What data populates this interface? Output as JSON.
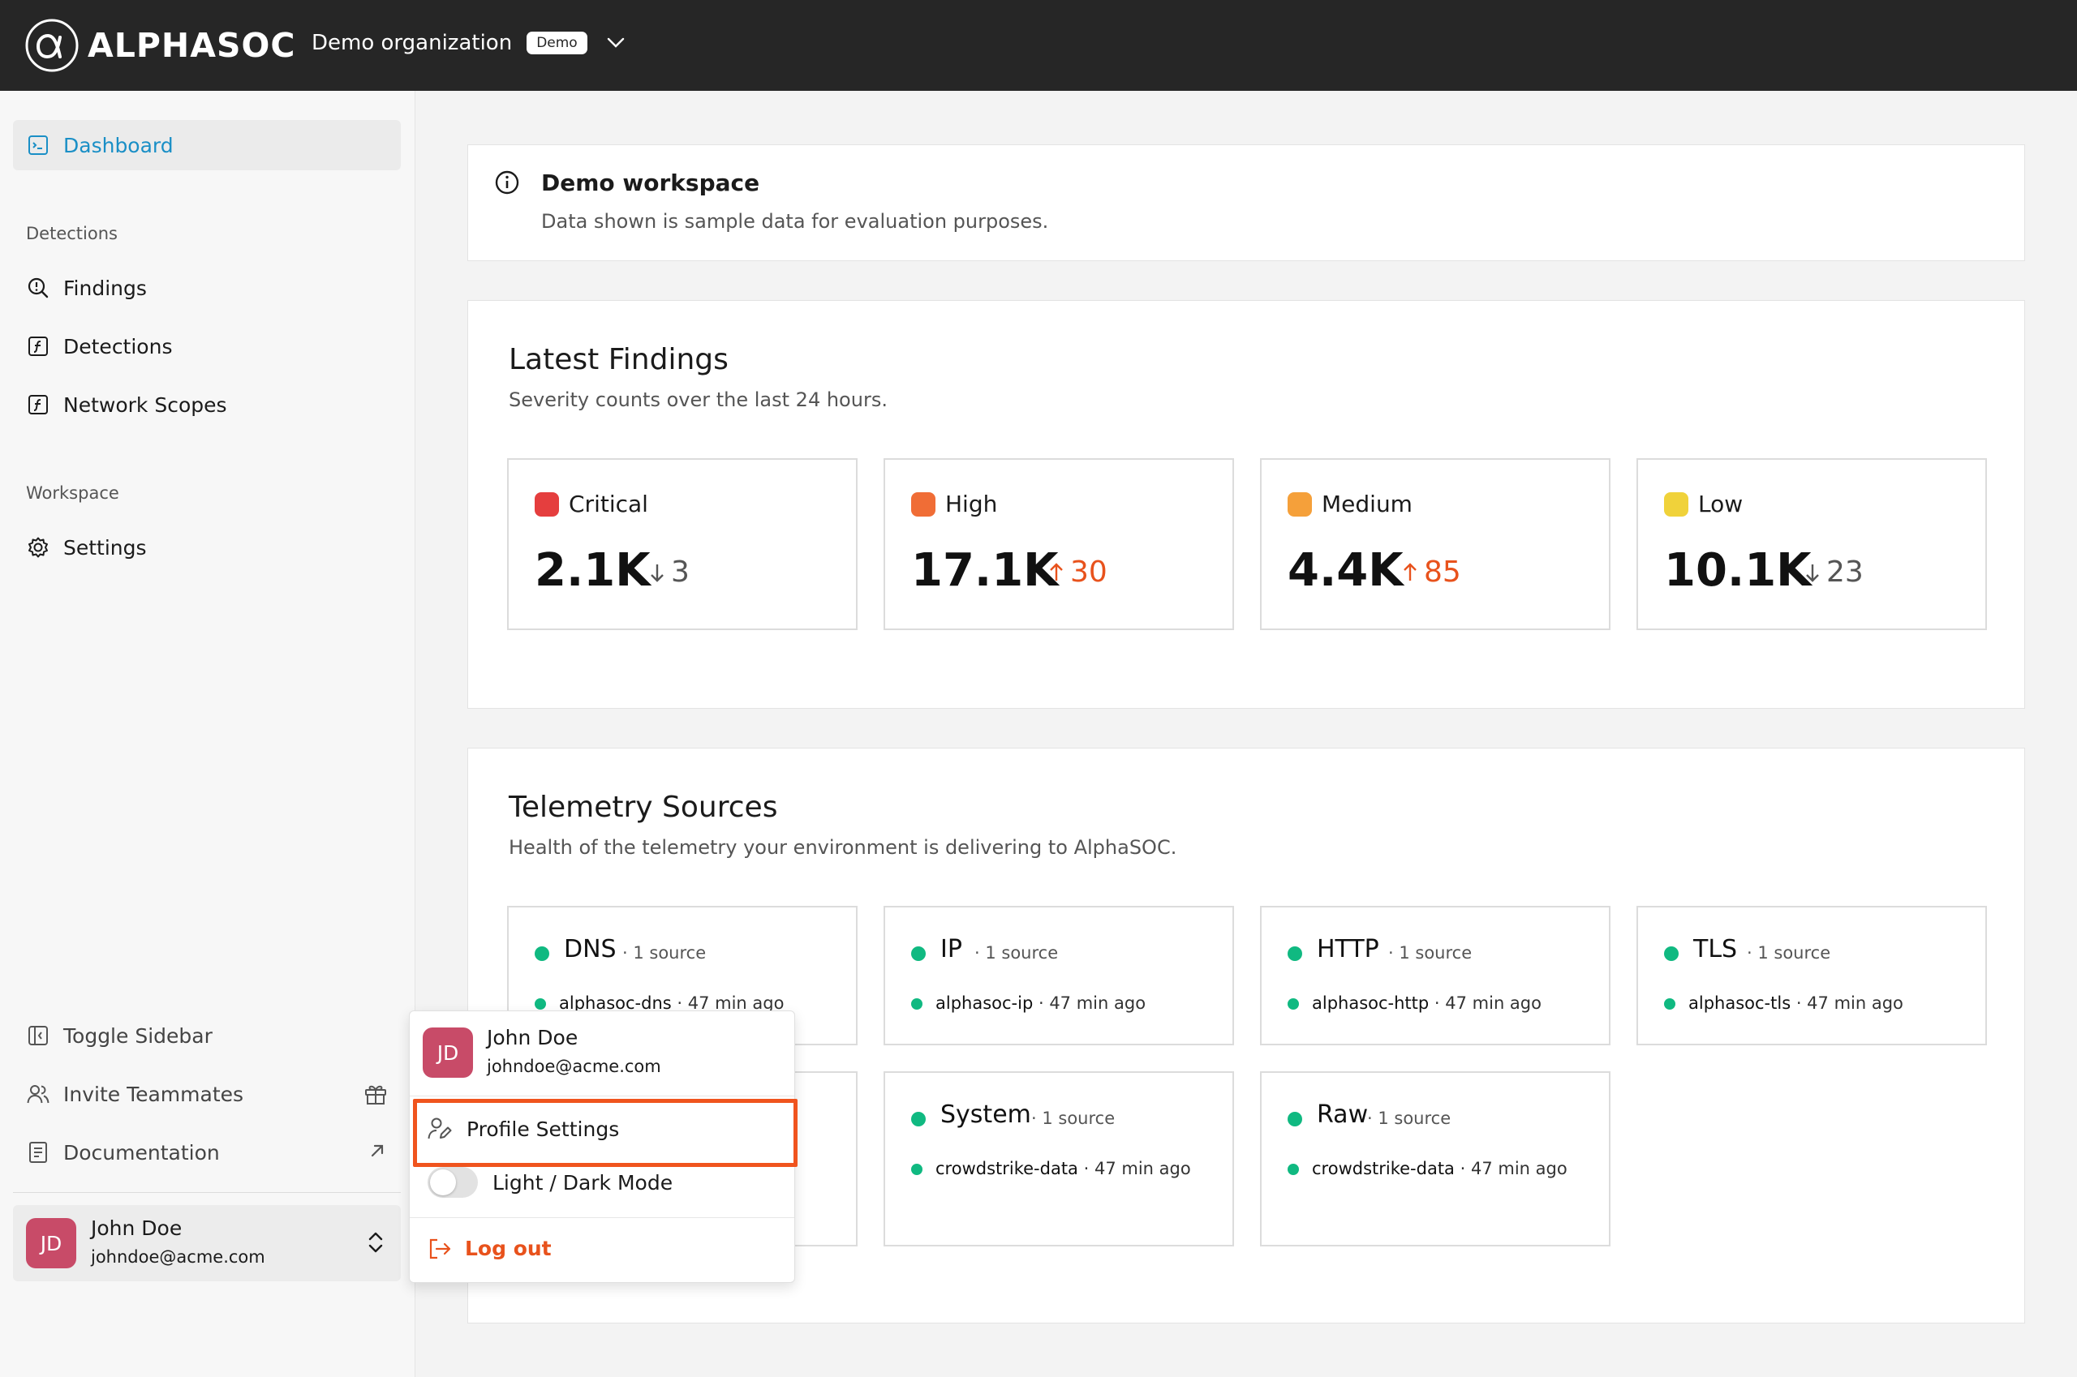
{
  "colors": {
    "accent": "#1a8fc6",
    "critical": "#e53e3e",
    "high": "#f06d36",
    "medium": "#f5a03a",
    "low": "#f0d23a",
    "up": "#e8521c",
    "healthy": "#10b981"
  },
  "header": {
    "brand": "ALPHASOC",
    "org_name": "Demo organization",
    "org_badge": "Demo"
  },
  "sidebar": {
    "dashboard": "Dashboard",
    "detections_section": "Detections",
    "detections_items": [
      "Findings",
      "Detections",
      "Network Scopes"
    ],
    "workspace_section": "Workspace",
    "settings": "Settings",
    "toggle_sidebar": "Toggle Sidebar",
    "invite": "Invite Teammates",
    "documentation": "Documentation",
    "user": {
      "initials": "JD",
      "name": "John Doe",
      "email": "johndoe@acme.com"
    }
  },
  "banner": {
    "title": "Demo workspace",
    "text": "Data shown is sample data for evaluation purposes."
  },
  "findings": {
    "title": "Latest Findings",
    "subtitle": "Severity counts over the last 24 hours.",
    "cards": [
      {
        "label": "Critical",
        "value": "2.1K",
        "delta": "3",
        "direction": "down"
      },
      {
        "label": "High",
        "value": "17.1K",
        "delta": "30",
        "direction": "up"
      },
      {
        "label": "Medium",
        "value": "4.4K",
        "delta": "85",
        "direction": "up"
      },
      {
        "label": "Low",
        "value": "10.1K",
        "delta": "23",
        "direction": "down"
      }
    ]
  },
  "telemetry": {
    "title": "Telemetry Sources",
    "subtitle": "Health of the telemetry your environment is delivering to AlphaSOC.",
    "cards": [
      {
        "name": "DNS",
        "count": "· 1 source",
        "source": "alphasoc-dns",
        "ago": " · 47 min ago"
      },
      {
        "name": "IP",
        "count": "· 1 source",
        "source": "alphasoc-ip",
        "ago": " · 47 min ago"
      },
      {
        "name": "HTTP",
        "count": "· 1 source",
        "source": "alphasoc-http",
        "ago": " · 47 min ago"
      },
      {
        "name": "TLS",
        "count": "· 1 source",
        "source": "alphasoc-tls",
        "ago": " · 47 min ago"
      },
      {
        "name": "System",
        "count": "· 1 source",
        "source": "crowdstrike-data",
        "ago": " · 47 min ago"
      },
      {
        "name": "Raw",
        "count": "· 1 source",
        "source": "crowdstrike-data",
        "ago": " · 47 min ago"
      }
    ]
  },
  "menu": {
    "user": {
      "initials": "JD",
      "name": "John Doe",
      "email": "johndoe@acme.com"
    },
    "profile_settings": "Profile Settings",
    "theme_toggle": "Light / Dark Mode",
    "logout": "Log out"
  }
}
